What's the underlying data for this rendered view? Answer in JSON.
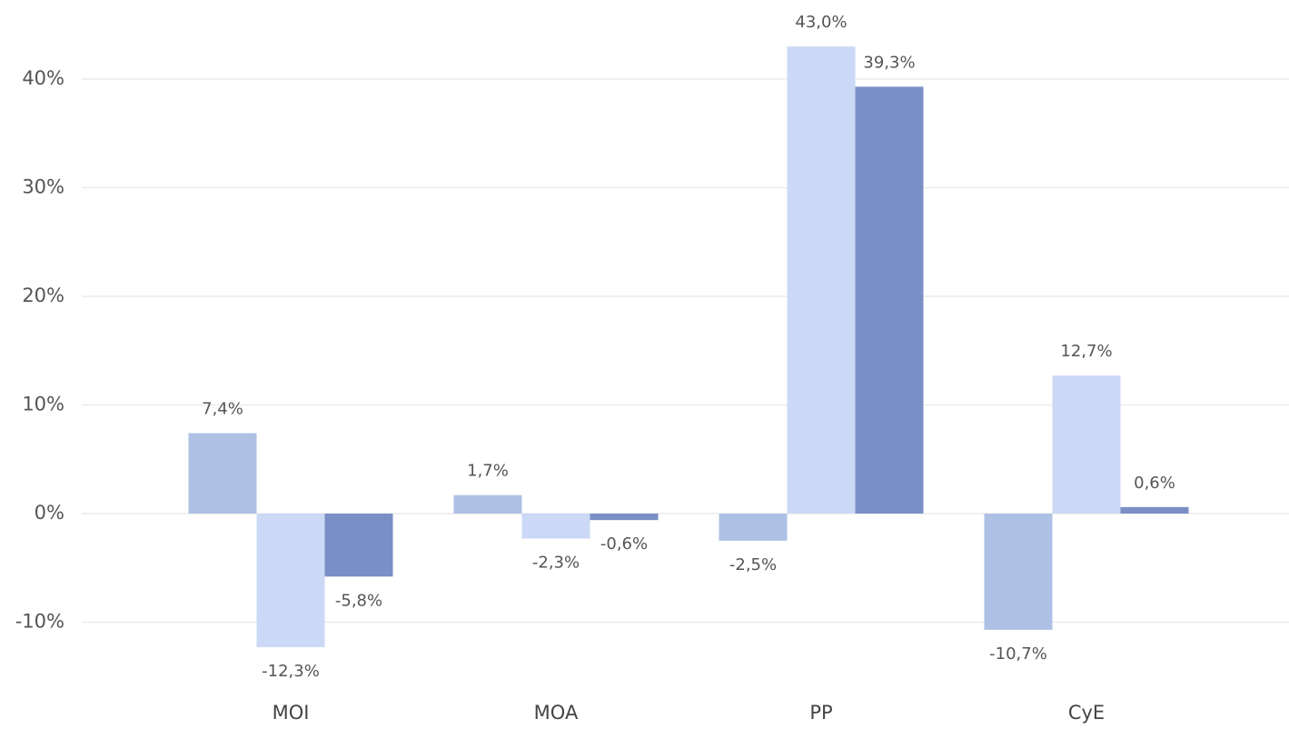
{
  "chart_data": {
    "type": "bar",
    "categories": [
      "MOI",
      "MOA",
      "PP",
      "CyE"
    ],
    "series": [
      {
        "color": "#aec0e4",
        "values": [
          7.4,
          1.7,
          -2.5,
          -10.7
        ],
        "value_labels": [
          "7,4%",
          "1,7%",
          "-2,5%",
          "-10,7%"
        ]
      },
      {
        "color": "#cbd9f7",
        "values": [
          -12.3,
          -2.3,
          43.0,
          12.7
        ],
        "value_labels": [
          "-12,3%",
          "-2,3%",
          "43,0%",
          "12,7%"
        ]
      },
      {
        "color": "#7a8fc6",
        "values": [
          -5.8,
          -0.6,
          39.3,
          0.6
        ],
        "value_labels": [
          "-5,8%",
          "-0,6%",
          "39,3%",
          "0,6%"
        ]
      }
    ],
    "ylim": [
      -15,
      46
    ],
    "yticks": [
      {
        "value": -10,
        "label": "-10%"
      },
      {
        "value": 0,
        "label": "0%"
      },
      {
        "value": 10,
        "label": "10%"
      },
      {
        "value": 20,
        "label": "20%"
      },
      {
        "value": 30,
        "label": "30%"
      },
      {
        "value": 40,
        "label": "40%"
      }
    ],
    "grid": true
  }
}
